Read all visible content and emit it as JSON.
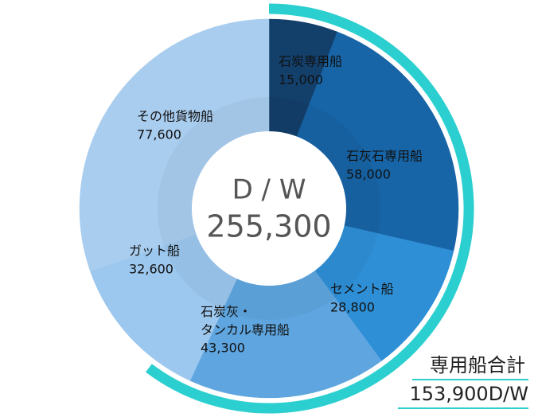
{
  "chart_data": {
    "type": "donut",
    "categories": [
      "石炭専用船",
      "石灰石専用船",
      "セメント船",
      "石炭灰・タンカル専用船",
      "ガット船",
      "その他貨物船"
    ],
    "values": [
      15000,
      58000,
      28800,
      43300,
      32600,
      77600
    ],
    "value_labels": [
      "15,000",
      "58,000",
      "28,800",
      "43,300",
      "32,600",
      "77,600"
    ],
    "colors": [
      "#133f6b",
      "#1764a6",
      "#2e8fd6",
      "#5fa6e0",
      "#9cc7ee",
      "#a9cdef"
    ],
    "center_title": "D / W",
    "total": {
      "value": 255300,
      "label": "255,300"
    },
    "highlight": {
      "name": "専用船合計",
      "value": 153900,
      "label": "153,900D/W",
      "color": "#2ccfcf"
    }
  }
}
